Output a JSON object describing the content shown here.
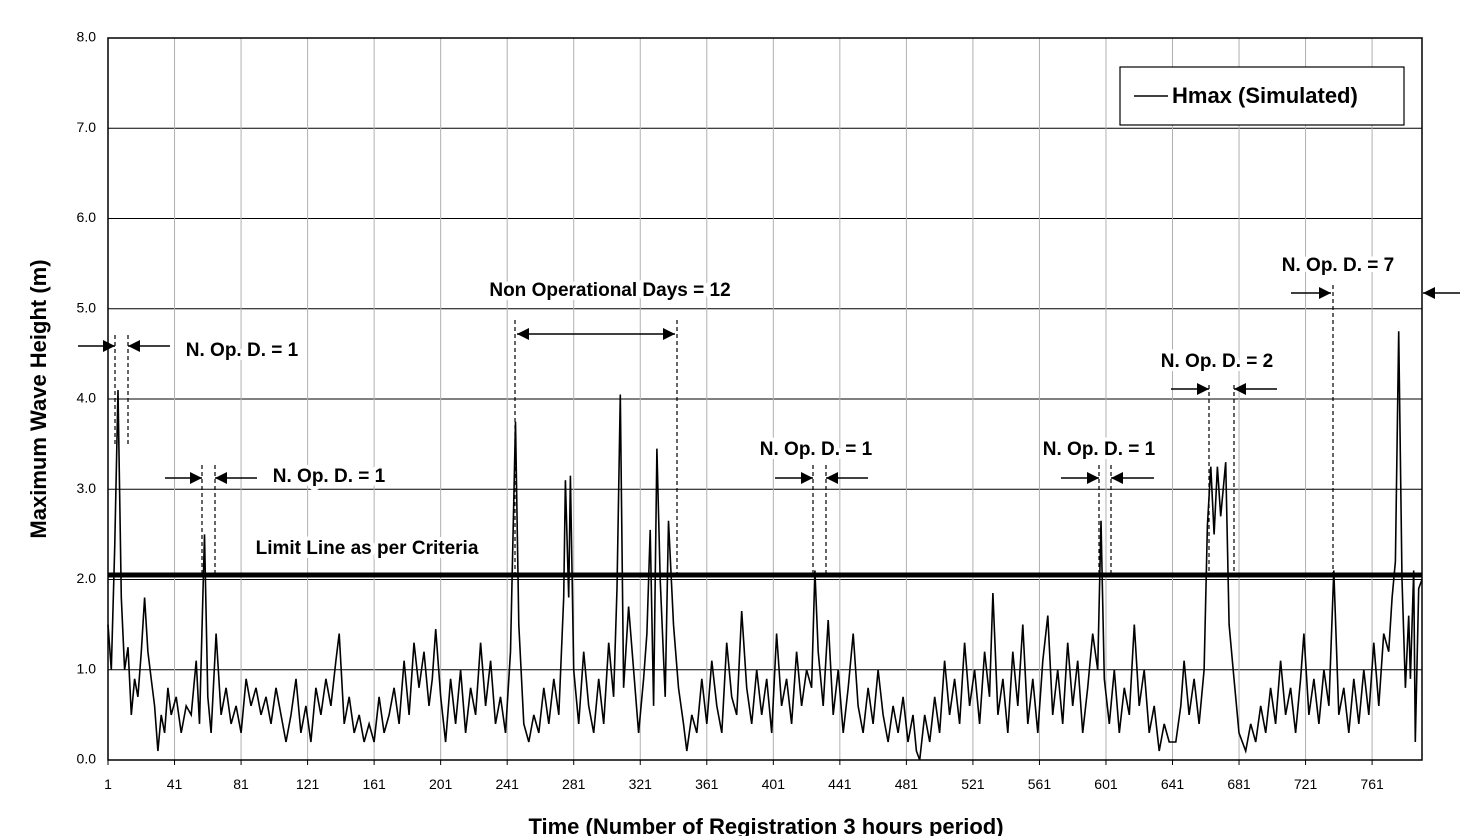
{
  "chart_data": {
    "type": "line",
    "y_label": "Maximum Wave Height (m)",
    "x_label": "Time (Number of Registration 3 hours period)",
    "xlim": [
      1,
      791
    ],
    "xticks": [
      1,
      41,
      81,
      121,
      161,
      201,
      241,
      281,
      321,
      361,
      401,
      441,
      481,
      521,
      561,
      601,
      641,
      681,
      721,
      761
    ],
    "ylim": [
      0,
      8
    ],
    "yticks": [
      {
        "value": 0,
        "label": "0.0"
      },
      {
        "value": 1,
        "label": "1.0"
      },
      {
        "value": 2,
        "label": "2.0"
      },
      {
        "value": 3,
        "label": "3.0"
      },
      {
        "value": 4,
        "label": "4.0"
      },
      {
        "value": 5,
        "label": "5.0"
      },
      {
        "value": 6,
        "label": "6.0"
      },
      {
        "value": 7,
        "label": "7.0"
      },
      {
        "value": 8,
        "label": "8.0"
      }
    ],
    "grid": true,
    "legend_position": "upper right",
    "limit_line": 2.05,
    "annotations": [
      "N. Op. D. = 1",
      "N. Op. D. = 1",
      "Non Operational Days = 12",
      "N. Op. D. = 1",
      "N. Op. D. = 1",
      "N. Op. D. = 2",
      "N. Op. D. = 7",
      "Limit Line as per Criteria"
    ],
    "x": [
      1,
      3,
      5,
      7,
      9,
      11,
      13,
      15,
      17,
      19,
      21,
      23,
      25,
      27,
      29,
      31,
      33,
      35,
      37,
      39,
      42,
      45,
      48,
      51,
      54,
      56,
      59,
      61,
      63,
      66,
      69,
      72,
      75,
      78,
      81,
      84,
      87,
      90,
      93,
      96,
      99,
      102,
      105,
      108,
      111,
      114,
      117,
      120,
      123,
      126,
      129,
      132,
      135,
      138,
      140,
      143,
      146,
      149,
      152,
      155,
      158,
      161,
      164,
      167,
      170,
      173,
      176,
      179,
      182,
      185,
      188,
      191,
      194,
      196,
      198,
      201,
      204,
      207,
      210,
      213,
      216,
      219,
      222,
      225,
      228,
      231,
      234,
      237,
      240,
      243,
      246,
      248,
      251,
      254,
      257,
      260,
      263,
      266,
      269,
      272,
      275,
      276,
      278,
      279,
      281,
      284,
      287,
      290,
      293,
      296,
      299,
      302,
      305,
      307,
      309,
      311,
      314,
      317,
      320,
      323,
      325,
      327,
      329,
      331,
      333,
      336,
      338,
      341,
      344,
      347,
      349,
      352,
      355,
      358,
      361,
      364,
      367,
      370,
      373,
      376,
      379,
      382,
      385,
      388,
      391,
      394,
      397,
      400,
      403,
      406,
      409,
      412,
      415,
      418,
      421,
      424,
      426,
      428,
      431,
      434,
      437,
      440,
      443,
      446,
      449,
      452,
      455,
      458,
      461,
      464,
      467,
      470,
      473,
      476,
      479,
      482,
      485,
      487,
      489,
      492,
      495,
      498,
      501,
      504,
      507,
      510,
      513,
      516,
      519,
      522,
      525,
      528,
      531,
      533,
      536,
      539,
      542,
      545,
      548,
      551,
      554,
      557,
      560,
      563,
      566,
      569,
      572,
      575,
      578,
      581,
      584,
      587,
      590,
      593,
      596,
      598,
      600,
      603,
      606,
      609,
      612,
      615,
      618,
      621,
      624,
      627,
      630,
      633,
      636,
      639,
      643,
      646,
      648,
      651,
      654,
      657,
      660,
      662,
      664,
      666,
      668,
      670,
      673,
      675,
      678,
      681,
      685,
      688,
      691,
      694,
      697,
      700,
      703,
      706,
      709,
      712,
      715,
      718,
      720,
      723,
      726,
      729,
      732,
      735,
      738,
      741,
      744,
      747,
      750,
      753,
      756,
      759,
      762,
      765,
      768,
      771,
      773,
      775,
      777,
      779,
      781,
      783,
      784,
      786,
      787,
      789,
      791
    ],
    "series": [
      {
        "name": "Hmax (Simulated)",
        "color": "#000000",
        "values": [
          1.5,
          1.0,
          2.35,
          4.1,
          1.8,
          1.0,
          1.25,
          0.5,
          0.9,
          0.7,
          1.2,
          1.8,
          1.2,
          0.9,
          0.6,
          0.1,
          0.5,
          0.3,
          0.8,
          0.5,
          0.7,
          0.3,
          0.6,
          0.5,
          1.1,
          0.4,
          2.5,
          0.7,
          0.3,
          1.4,
          0.5,
          0.8,
          0.4,
          0.6,
          0.3,
          0.9,
          0.6,
          0.8,
          0.5,
          0.7,
          0.4,
          0.8,
          0.5,
          0.2,
          0.5,
          0.9,
          0.3,
          0.6,
          0.2,
          0.8,
          0.5,
          0.9,
          0.6,
          1.1,
          1.4,
          0.4,
          0.7,
          0.3,
          0.5,
          0.2,
          0.4,
          0.2,
          0.7,
          0.3,
          0.5,
          0.8,
          0.4,
          1.1,
          0.5,
          1.3,
          0.8,
          1.2,
          0.6,
          0.9,
          1.45,
          0.7,
          0.2,
          0.9,
          0.4,
          1.0,
          0.3,
          0.8,
          0.5,
          1.3,
          0.6,
          1.1,
          0.4,
          0.7,
          0.3,
          1.2,
          3.75,
          1.5,
          0.4,
          0.2,
          0.5,
          0.3,
          0.8,
          0.4,
          0.9,
          0.5,
          1.8,
          3.1,
          1.8,
          3.15,
          1.0,
          0.4,
          1.2,
          0.6,
          0.3,
          0.9,
          0.4,
          1.3,
          0.7,
          1.9,
          4.05,
          0.8,
          1.7,
          1.0,
          0.3,
          0.9,
          1.4,
          2.55,
          0.6,
          3.45,
          2.0,
          0.7,
          2.65,
          1.5,
          0.8,
          0.4,
          0.1,
          0.5,
          0.3,
          0.9,
          0.4,
          1.1,
          0.6,
          0.3,
          1.3,
          0.7,
          0.5,
          1.65,
          0.8,
          0.4,
          1.0,
          0.5,
          0.9,
          0.3,
          1.4,
          0.6,
          0.9,
          0.4,
          1.2,
          0.6,
          1.0,
          0.8,
          2.1,
          1.2,
          0.6,
          1.55,
          0.5,
          1.0,
          0.3,
          0.8,
          1.4,
          0.6,
          0.3,
          0.8,
          0.4,
          1.0,
          0.5,
          0.2,
          0.6,
          0.3,
          0.7,
          0.2,
          0.5,
          0.1,
          0.0,
          0.5,
          0.2,
          0.7,
          0.3,
          1.1,
          0.5,
          0.9,
          0.4,
          1.3,
          0.6,
          1.0,
          0.4,
          1.2,
          0.7,
          1.85,
          0.5,
          0.9,
          0.3,
          1.2,
          0.6,
          1.5,
          0.4,
          0.9,
          0.3,
          1.1,
          1.6,
          0.5,
          1.0,
          0.4,
          1.3,
          0.6,
          1.1,
          0.3,
          0.8,
          1.4,
          1.0,
          2.65,
          0.9,
          0.4,
          1.0,
          0.3,
          0.8,
          0.5,
          1.5,
          0.6,
          1.0,
          0.3,
          0.6,
          0.1,
          0.4,
          0.2,
          0.2,
          0.6,
          1.1,
          0.5,
          0.9,
          0.4,
          1.0,
          2.6,
          3.25,
          2.5,
          3.25,
          2.7,
          3.3,
          1.5,
          0.9,
          0.3,
          0.1,
          0.4,
          0.2,
          0.6,
          0.3,
          0.8,
          0.4,
          1.1,
          0.5,
          0.8,
          0.3,
          0.9,
          1.4,
          0.5,
          0.9,
          0.4,
          1.0,
          0.6,
          2.1,
          0.5,
          0.8,
          0.3,
          0.9,
          0.4,
          1.0,
          0.5,
          1.3,
          0.6,
          1.4,
          1.2,
          1.8,
          2.2,
          4.75,
          2.0,
          0.8,
          1.6,
          0.9,
          2.1,
          0.2,
          1.9,
          2.0
        ]
      }
    ]
  }
}
